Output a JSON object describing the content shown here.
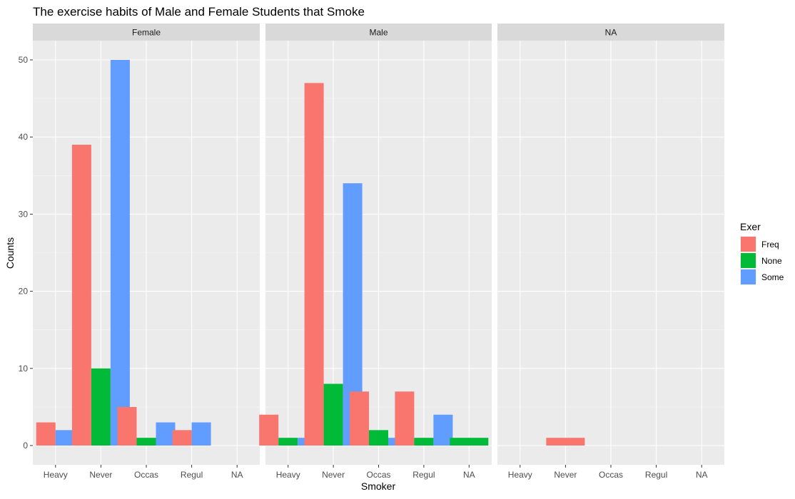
{
  "chart_data": {
    "type": "bar",
    "title": "The exercise habits of Male and Female Students that Smoke",
    "xlabel": "Smoker",
    "ylabel": "Counts",
    "ylim": [
      0,
      54
    ],
    "yticks": [
      0,
      10,
      20,
      30,
      40,
      50
    ],
    "grid": true,
    "legend": {
      "title": "Exer",
      "placement": "right",
      "entries": [
        {
          "name": "Freq",
          "color": "#F8766D"
        },
        {
          "name": "None",
          "color": "#00BA38"
        },
        {
          "name": "Some",
          "color": "#619CFF"
        }
      ]
    },
    "categories": [
      "Heavy",
      "Never",
      "Occas",
      "Regul",
      "NA"
    ],
    "facets": [
      {
        "label": "Female",
        "groups": [
          {
            "category": "Heavy",
            "bars": [
              {
                "exer": "Freq",
                "value": 3
              },
              {
                "exer": "Some",
                "value": 2
              }
            ]
          },
          {
            "category": "Never",
            "bars": [
              {
                "exer": "Freq",
                "value": 39
              },
              {
                "exer": "None",
                "value": 10
              },
              {
                "exer": "Some",
                "value": 50
              }
            ]
          },
          {
            "category": "Occas",
            "bars": [
              {
                "exer": "Freq",
                "value": 5
              },
              {
                "exer": "None",
                "value": 1
              },
              {
                "exer": "Some",
                "value": 3
              }
            ]
          },
          {
            "category": "Regul",
            "bars": [
              {
                "exer": "Freq",
                "value": 2
              },
              {
                "exer": "Some",
                "value": 3
              }
            ]
          },
          {
            "category": "NA",
            "bars": []
          }
        ]
      },
      {
        "label": "Male",
        "groups": [
          {
            "category": "Heavy",
            "bars": [
              {
                "exer": "Freq",
                "value": 4
              },
              {
                "exer": "None",
                "value": 1
              },
              {
                "exer": "Some",
                "value": 1
              }
            ]
          },
          {
            "category": "Never",
            "bars": [
              {
                "exer": "Freq",
                "value": 47
              },
              {
                "exer": "None",
                "value": 8
              },
              {
                "exer": "Some",
                "value": 34
              }
            ]
          },
          {
            "category": "Occas",
            "bars": [
              {
                "exer": "Freq",
                "value": 7
              },
              {
                "exer": "None",
                "value": 2
              },
              {
                "exer": "Some",
                "value": 1
              }
            ]
          },
          {
            "category": "Regul",
            "bars": [
              {
                "exer": "Freq",
                "value": 7
              },
              {
                "exer": "None",
                "value": 1
              },
              {
                "exer": "Some",
                "value": 4
              }
            ]
          },
          {
            "category": "NA",
            "bars": [
              {
                "exer": "None",
                "value": 1
              }
            ]
          }
        ]
      },
      {
        "label": "NA",
        "groups": [
          {
            "category": "Heavy",
            "bars": []
          },
          {
            "category": "Never",
            "bars": [
              {
                "exer": "Freq",
                "value": 1
              }
            ]
          },
          {
            "category": "Occas",
            "bars": []
          },
          {
            "category": "Regul",
            "bars": []
          },
          {
            "category": "NA",
            "bars": []
          }
        ]
      }
    ]
  }
}
